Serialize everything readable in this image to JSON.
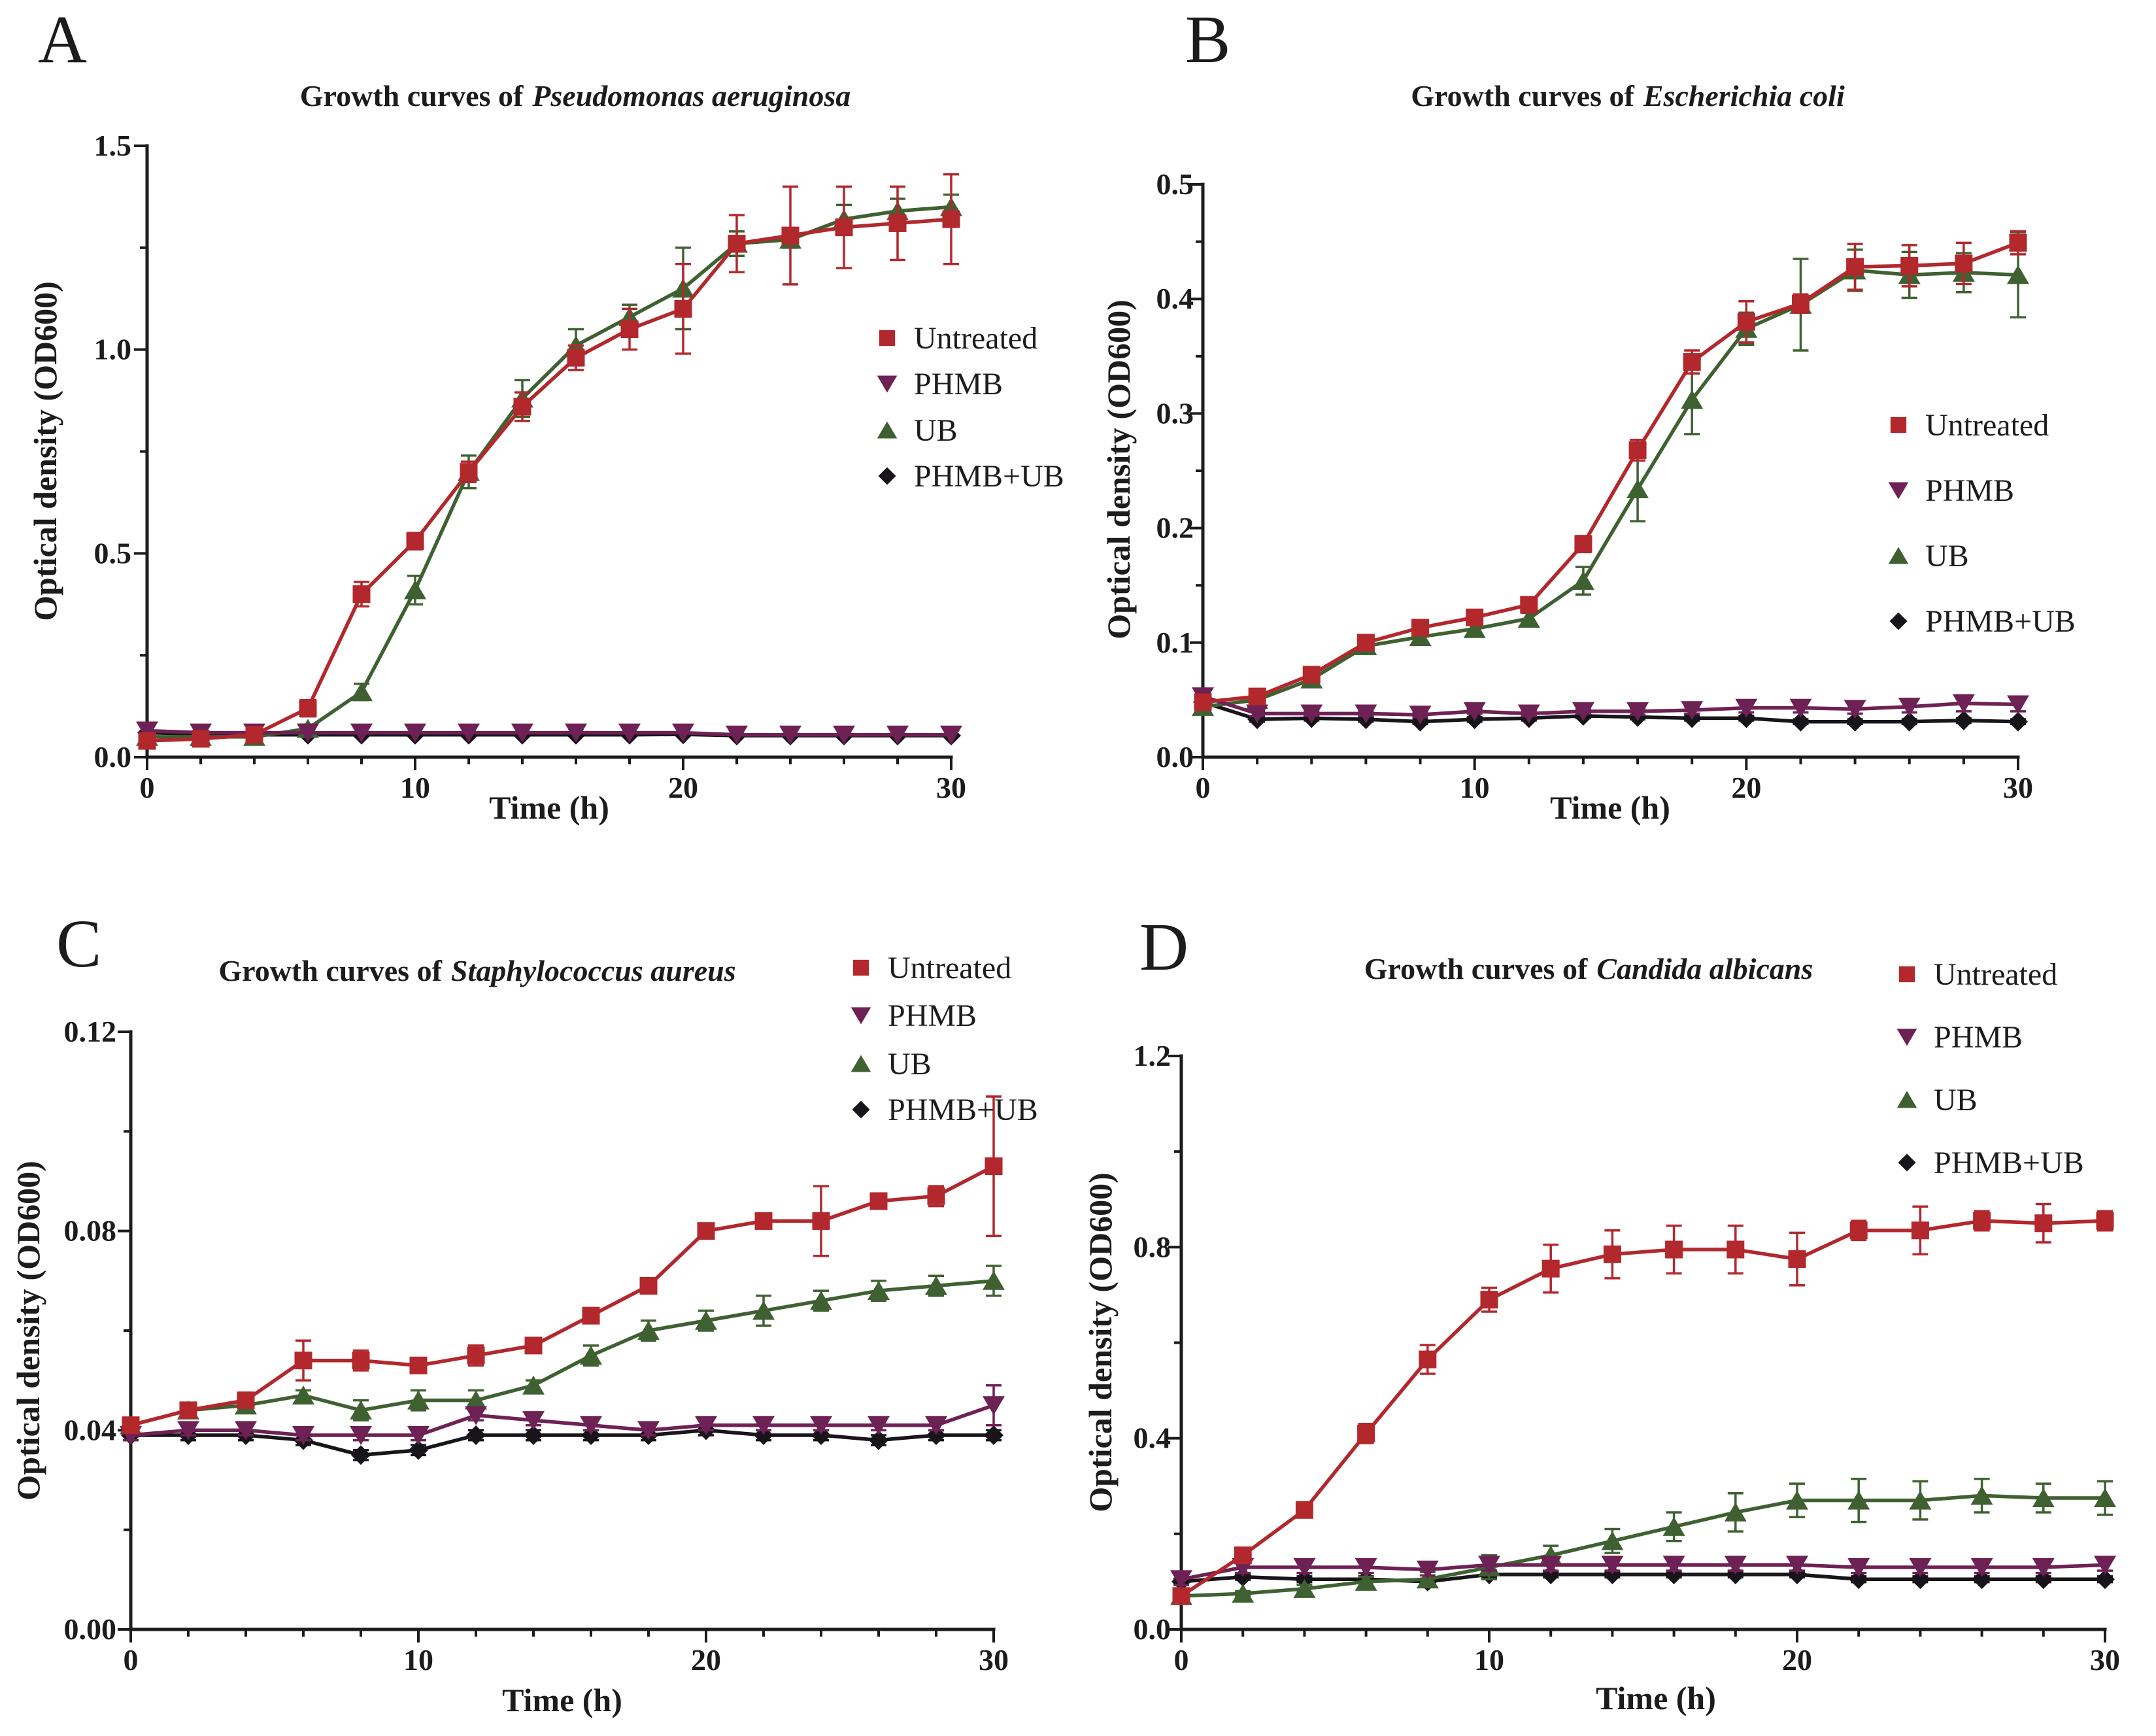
{
  "colors": {
    "untreated": "#b2282d",
    "phmb": "#6e2154",
    "ub": "#3f6132",
    "phmb_ub": "#17141a",
    "axis": "#1c1c1c",
    "background": "#ffffff"
  },
  "chart_data": [
    {
      "type": "line",
      "panel_label": "A",
      "title_prefix": "Growth curves of",
      "title_species_italic": "Pseudomonas aeruginosa",
      "xlabel": "Time (h)",
      "ylabel": "Optical density (OD600)",
      "xlim": [
        0,
        30
      ],
      "ylim": [
        0,
        1.5
      ],
      "x": [
        0,
        2,
        4,
        6,
        8,
        10,
        12,
        14,
        16,
        18,
        20,
        22,
        24,
        26,
        28,
        30
      ],
      "xticks_major": [
        0,
        10,
        20,
        30
      ],
      "xtick_labels": [
        "0",
        "10",
        "20",
        "30"
      ],
      "xtick_minor_step": 2,
      "yticks_major": [
        0,
        0.5,
        1.0,
        1.5
      ],
      "ytick_labels": [
        "0.0",
        "0.5",
        "1.0",
        "1.5"
      ],
      "ytick_minor_step": 0.25,
      "grid": false,
      "legend_position": "inside-right-middle",
      "series": [
        {
          "name": "Untreated",
          "color_key": "untreated",
          "marker": "square",
          "values": [
            0.04,
            0.045,
            0.055,
            0.12,
            0.4,
            0.53,
            0.7,
            0.86,
            0.98,
            1.05,
            1.1,
            1.26,
            1.28,
            1.3,
            1.31,
            1.32
          ],
          "errors": [
            0.01,
            0.01,
            0.01,
            0.02,
            0.03,
            0.02,
            0.025,
            0.035,
            0.03,
            0.05,
            0.11,
            0.07,
            0.12,
            0.1,
            0.09,
            0.11
          ]
        },
        {
          "name": "PHMB",
          "color_key": "phmb",
          "marker": "triangle-down",
          "values": [
            0.065,
            0.06,
            0.06,
            0.06,
            0.06,
            0.06,
            0.06,
            0.06,
            0.06,
            0.06,
            0.06,
            0.055,
            0.055,
            0.055,
            0.055,
            0.055
          ],
          "errors": [
            0,
            0,
            0,
            0,
            0,
            0,
            0,
            0,
            0,
            0,
            0,
            0,
            0,
            0,
            0,
            0
          ]
        },
        {
          "name": "UB",
          "color_key": "ub",
          "marker": "triangle-up",
          "values": [
            0.05,
            0.05,
            0.05,
            0.07,
            0.16,
            0.41,
            0.7,
            0.88,
            1.01,
            1.08,
            1.15,
            1.26,
            1.27,
            1.32,
            1.34,
            1.35
          ],
          "errors": [
            0,
            0,
            0,
            0.01,
            0.02,
            0.035,
            0.04,
            0.045,
            0.04,
            0.03,
            0.1,
            0.03,
            0.02,
            0.035,
            0.03,
            0.03
          ]
        },
        {
          "name": "PHMB+UB",
          "color_key": "phmb_ub",
          "marker": "diamond",
          "values": [
            0.06,
            0.057,
            0.055,
            0.055,
            0.055,
            0.055,
            0.055,
            0.055,
            0.055,
            0.055,
            0.056,
            0.053,
            0.053,
            0.053,
            0.053,
            0.053
          ],
          "errors": [
            0,
            0,
            0,
            0,
            0,
            0,
            0,
            0,
            0,
            0,
            0,
            0,
            0,
            0,
            0,
            0
          ]
        }
      ]
    },
    {
      "type": "line",
      "panel_label": "B",
      "title_prefix": "Growth curves of",
      "title_species_italic": "Escherichia coli",
      "xlabel": "Time (h)",
      "ylabel": "Optical density (OD600)",
      "xlim": [
        0,
        30
      ],
      "ylim": [
        0,
        0.5
      ],
      "x": [
        0,
        2,
        4,
        6,
        8,
        10,
        12,
        14,
        16,
        18,
        20,
        22,
        24,
        26,
        28,
        30
      ],
      "xticks_major": [
        0,
        10,
        20,
        30
      ],
      "xtick_labels": [
        "0",
        "10",
        "20",
        "30"
      ],
      "xtick_minor_step": 2,
      "yticks_major": [
        0,
        0.1,
        0.2,
        0.3,
        0.4,
        0.5
      ],
      "ytick_labels": [
        "0.0",
        "0.1",
        "0.2",
        "0.3",
        "0.4",
        "0.5"
      ],
      "ytick_minor_step": 0.05,
      "grid": false,
      "legend_position": "inside-right-middle",
      "series": [
        {
          "name": "Untreated",
          "color_key": "untreated",
          "marker": "square",
          "values": [
            0.048,
            0.053,
            0.072,
            0.1,
            0.113,
            0.122,
            0.133,
            0.186,
            0.268,
            0.345,
            0.38,
            0.396,
            0.428,
            0.429,
            0.431,
            0.449
          ],
          "errors": [
            0.003,
            0.003,
            0.003,
            0.004,
            0.004,
            0.005,
            0.005,
            0.007,
            0.009,
            0.01,
            0.018,
            0.008,
            0.02,
            0.018,
            0.018,
            0.01
          ]
        },
        {
          "name": "PHMB",
          "color_key": "phmb",
          "marker": "triangle-down",
          "values": [
            0.053,
            0.038,
            0.038,
            0.038,
            0.037,
            0.04,
            0.038,
            0.04,
            0.04,
            0.041,
            0.043,
            0.043,
            0.042,
            0.044,
            0.047,
            0.046
          ],
          "errors": [
            0.003,
            0.002,
            0.002,
            0.002,
            0.002,
            0.002,
            0.002,
            0.002,
            0.003,
            0.003,
            0.004,
            0.004,
            0.004,
            0.005,
            0.007,
            0.006
          ]
        },
        {
          "name": "UB",
          "color_key": "ub",
          "marker": "triangle-up",
          "values": [
            0.044,
            0.05,
            0.068,
            0.097,
            0.105,
            0.112,
            0.121,
            0.154,
            0.234,
            0.312,
            0.374,
            0.395,
            0.425,
            0.421,
            0.423,
            0.421
          ],
          "errors": [
            0.003,
            0.003,
            0.003,
            0.004,
            0.005,
            0.005,
            0.005,
            0.012,
            0.028,
            0.03,
            0.014,
            0.04,
            0.018,
            0.02,
            0.017,
            0.037
          ]
        },
        {
          "name": "PHMB+UB",
          "color_key": "phmb_ub",
          "marker": "diamond",
          "values": [
            0.048,
            0.033,
            0.034,
            0.033,
            0.031,
            0.033,
            0.034,
            0.036,
            0.035,
            0.034,
            0.034,
            0.031,
            0.031,
            0.031,
            0.032,
            0.031
          ],
          "errors": [
            0.002,
            0.002,
            0.002,
            0.002,
            0.002,
            0.002,
            0.002,
            0.002,
            0.002,
            0.002,
            0.002,
            0.002,
            0.002,
            0.002,
            0.002,
            0.002
          ]
        }
      ]
    },
    {
      "type": "line",
      "panel_label": "C",
      "title_prefix": "Growth curves of",
      "title_species_italic": "Staphylococcus aureus",
      "xlabel": "Time (h)",
      "ylabel": "Optical density (OD600)",
      "xlim": [
        0,
        30
      ],
      "ylim": [
        0,
        0.12
      ],
      "x": [
        0,
        2,
        4,
        6,
        8,
        10,
        12,
        14,
        16,
        18,
        20,
        22,
        24,
        26,
        28,
        30
      ],
      "xticks_major": [
        0,
        10,
        20,
        30
      ],
      "xtick_labels": [
        "0",
        "10",
        "20",
        "30"
      ],
      "xtick_minor_step": 2,
      "yticks_major": [
        0,
        0.04,
        0.08,
        0.12
      ],
      "ytick_labels": [
        "0.00",
        "0.04",
        "0.08",
        "0.12"
      ],
      "ytick_minor_step": 0.02,
      "grid": false,
      "legend_position": "top-right",
      "series": [
        {
          "name": "Untreated",
          "color_key": "untreated",
          "marker": "square",
          "values": [
            0.041,
            0.044,
            0.046,
            0.054,
            0.054,
            0.053,
            0.055,
            0.057,
            0.063,
            0.069,
            0.08,
            0.082,
            0.082,
            0.086,
            0.087,
            0.093
          ],
          "errors": [
            0.001,
            0.001,
            0.001,
            0.004,
            0.002,
            0.001,
            0.002,
            0.001,
            0.001,
            0.001,
            0.001,
            0.001,
            0.007,
            0.001,
            0.002,
            0.014
          ]
        },
        {
          "name": "PHMB",
          "color_key": "phmb",
          "marker": "triangle-down",
          "values": [
            0.039,
            0.04,
            0.04,
            0.039,
            0.039,
            0.039,
            0.043,
            0.042,
            0.041,
            0.04,
            0.041,
            0.041,
            0.041,
            0.041,
            0.041,
            0.045
          ],
          "errors": [
            0.001,
            0.001,
            0.001,
            0.001,
            0.001,
            0.001,
            0.001,
            0.001,
            0.001,
            0.001,
            0.001,
            0.001,
            0.001,
            0.001,
            0.001,
            0.004
          ]
        },
        {
          "name": "UB",
          "color_key": "ub",
          "marker": "triangle-up",
          "values": [
            0.041,
            0.044,
            0.045,
            0.047,
            0.044,
            0.046,
            0.046,
            0.049,
            0.055,
            0.06,
            0.062,
            0.064,
            0.066,
            0.068,
            0.069,
            0.07
          ],
          "errors": [
            0.001,
            0.001,
            0.001,
            0.001,
            0.002,
            0.002,
            0.002,
            0.001,
            0.002,
            0.002,
            0.002,
            0.003,
            0.002,
            0.002,
            0.002,
            0.003
          ]
        },
        {
          "name": "PHMB+UB",
          "color_key": "phmb_ub",
          "marker": "diamond",
          "values": [
            0.039,
            0.039,
            0.039,
            0.038,
            0.035,
            0.036,
            0.039,
            0.039,
            0.039,
            0.039,
            0.04,
            0.039,
            0.039,
            0.038,
            0.039,
            0.039
          ],
          "errors": [
            0.001,
            0.001,
            0.001,
            0.001,
            0.001,
            0.001,
            0.001,
            0.001,
            0.001,
            0.001,
            0.001,
            0.001,
            0.001,
            0.001,
            0.001,
            0.001
          ]
        }
      ]
    },
    {
      "type": "line",
      "panel_label": "D",
      "title_prefix": "Growth curves of",
      "title_species_italic": "Candida albicans",
      "xlabel": "Time (h)",
      "ylabel": "Optical density (OD600)",
      "xlim": [
        0,
        30
      ],
      "ylim": [
        0,
        1.2
      ],
      "x": [
        0,
        2,
        4,
        6,
        8,
        10,
        12,
        14,
        16,
        18,
        20,
        22,
        24,
        26,
        28,
        30
      ],
      "xticks_major": [
        0,
        10,
        20,
        30
      ],
      "xtick_labels": [
        "0",
        "10",
        "20",
        "30"
      ],
      "xtick_minor_step": 2,
      "yticks_major": [
        0,
        0.4,
        0.8,
        1.2
      ],
      "ytick_labels": [
        "0.0",
        "0.4",
        "0.8",
        "1.2"
      ],
      "ytick_minor_step": 0.2,
      "grid": false,
      "legend_position": "top-right",
      "series": [
        {
          "name": "Untreated",
          "color_key": "untreated",
          "marker": "square",
          "values": [
            0.07,
            0.155,
            0.25,
            0.41,
            0.565,
            0.69,
            0.755,
            0.785,
            0.795,
            0.795,
            0.775,
            0.835,
            0.835,
            0.855,
            0.85,
            0.855
          ],
          "errors": [
            0.01,
            0.01,
            0.015,
            0.02,
            0.03,
            0.025,
            0.05,
            0.05,
            0.05,
            0.05,
            0.055,
            0.02,
            0.05,
            0.02,
            0.04,
            0.02
          ]
        },
        {
          "name": "PHMB",
          "color_key": "phmb",
          "marker": "triangle-down",
          "values": [
            0.105,
            0.13,
            0.13,
            0.13,
            0.125,
            0.135,
            0.135,
            0.135,
            0.135,
            0.135,
            0.135,
            0.13,
            0.13,
            0.13,
            0.13,
            0.135
          ],
          "errors": [
            0.012,
            0.012,
            0.012,
            0.012,
            0.012,
            0.012,
            0.012,
            0.012,
            0.012,
            0.012,
            0.012,
            0.012,
            0.012,
            0.012,
            0.012,
            0.012
          ]
        },
        {
          "name": "UB",
          "color_key": "ub",
          "marker": "triangle-up",
          "values": [
            0.07,
            0.075,
            0.085,
            0.1,
            0.105,
            0.13,
            0.155,
            0.185,
            0.215,
            0.245,
            0.27,
            0.27,
            0.27,
            0.28,
            0.275,
            0.275
          ],
          "errors": [
            0.005,
            0.005,
            0.008,
            0.01,
            0.015,
            0.025,
            0.02,
            0.025,
            0.03,
            0.04,
            0.035,
            0.045,
            0.04,
            0.035,
            0.03,
            0.035
          ]
        },
        {
          "name": "PHMB+UB",
          "color_key": "phmb_ub",
          "marker": "diamond",
          "values": [
            0.1,
            0.11,
            0.105,
            0.105,
            0.1,
            0.115,
            0.115,
            0.115,
            0.115,
            0.115,
            0.115,
            0.105,
            0.105,
            0.105,
            0.105,
            0.105
          ],
          "errors": [
            0.006,
            0.006,
            0.006,
            0.006,
            0.006,
            0.006,
            0.006,
            0.006,
            0.006,
            0.006,
            0.006,
            0.006,
            0.006,
            0.006,
            0.006,
            0.006
          ]
        }
      ]
    }
  ]
}
